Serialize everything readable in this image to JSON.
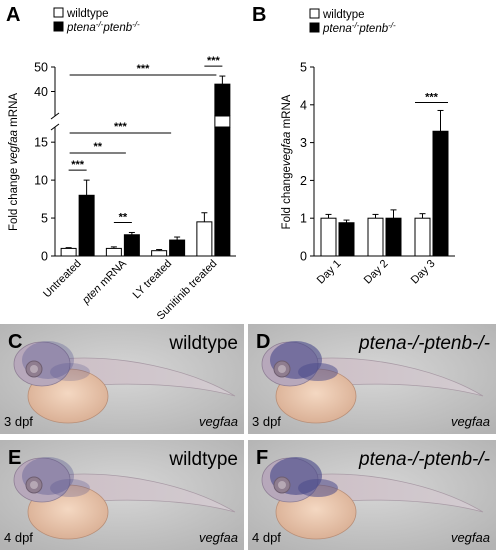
{
  "panels": {
    "A": "A",
    "B": "B",
    "C": "C",
    "D": "D",
    "E": "E",
    "F": "F"
  },
  "legend": {
    "wildtype": "wildtype",
    "mutant_base": "ptena",
    "mutant_sup1": "-/-",
    "mutant_mid": "ptenb",
    "mutant_sup2": "-/-"
  },
  "colors": {
    "wildtype": "#ffffff",
    "mutant": "#000000",
    "photo_bg": "#c9c9c9",
    "stain": "#4a4a8a"
  },
  "chart_data": [
    {
      "type": "bar",
      "panel": "A",
      "ylabel_prefix": "Fold change ",
      "ylabel_italic": "vegfaa",
      "ylabel_suffix": " mRNA",
      "broken_axis": true,
      "ylim_lower": [
        0,
        17
      ],
      "ylim_upper": [
        30,
        50
      ],
      "yticks_lower": [
        "0",
        "5",
        "10",
        "15"
      ],
      "yticks_upper": [
        "40",
        "50"
      ],
      "categories": [
        "Untreated",
        "pten mRNA",
        "LY treated",
        "Sunitinib treated"
      ],
      "category_italic": [
        false,
        true,
        false,
        false
      ],
      "category_italic_part": [
        "",
        "pten",
        "",
        ""
      ],
      "category_rest": [
        "Untreated",
        " mRNA",
        "LY treated",
        "Sunitinib treated"
      ],
      "series": [
        {
          "name": "wildtype",
          "values": [
            1.0,
            1.0,
            0.7,
            4.5
          ],
          "errors": [
            0.1,
            0.2,
            0.15,
            1.2
          ]
        },
        {
          "name": "ptena-/-ptenb-/-",
          "values": [
            8.0,
            2.8,
            2.1,
            43.0
          ],
          "errors": [
            2.0,
            0.3,
            0.4,
            3.3
          ]
        }
      ],
      "significance": [
        {
          "label": "***",
          "type": "pair",
          "category": 0
        },
        {
          "label": "**",
          "type": "pair",
          "category": 1
        },
        {
          "label": "***",
          "type": "pair",
          "category": 3
        },
        {
          "label": "**",
          "type": "span",
          "from": 0,
          "to": 1
        },
        {
          "label": "***",
          "type": "span",
          "from": 0,
          "to": 2
        },
        {
          "label": "***",
          "type": "span",
          "from": 0,
          "to": 3
        }
      ]
    },
    {
      "type": "bar",
      "panel": "B",
      "ylabel_prefix": "Fold change",
      "ylabel_italic": "vegfaa",
      "ylabel_suffix": " mRNA",
      "ylim": [
        0,
        5
      ],
      "yticks": [
        "0",
        "1",
        "2",
        "3",
        "4",
        "5"
      ],
      "categories": [
        "Day 1",
        "Day 2",
        "Day 3"
      ],
      "series": [
        {
          "name": "wildtype",
          "values": [
            1.0,
            1.0,
            1.0
          ],
          "errors": [
            0.1,
            0.1,
            0.12
          ]
        },
        {
          "name": "ptena-/-ptenb-/-",
          "values": [
            0.88,
            1.0,
            3.3
          ],
          "errors": [
            0.07,
            0.22,
            0.55
          ]
        }
      ],
      "significance": [
        {
          "label": "***",
          "type": "pair",
          "category": 2
        }
      ]
    }
  ],
  "photos": [
    {
      "panel": "C",
      "genotype": "wildtype",
      "genotype_is_mutant": false,
      "stage": "3 dpf",
      "probe": "vegfaa",
      "stain_level": 0.25
    },
    {
      "panel": "D",
      "genotype": "ptena-/-ptenb-/-",
      "genotype_is_mutant": true,
      "stage": "3 dpf",
      "probe": "vegfaa",
      "stain_level": 0.75
    },
    {
      "panel": "E",
      "genotype": "wildtype",
      "genotype_is_mutant": false,
      "stage": "4 dpf",
      "probe": "vegfaa",
      "stain_level": 0.3
    },
    {
      "panel": "F",
      "genotype": "ptena-/-ptenb-/-",
      "genotype_is_mutant": true,
      "stage": "4 dpf",
      "probe": "vegfaa",
      "stain_level": 0.8
    }
  ],
  "photo_text": {
    "wildtype": "wildtype",
    "mut_a": "ptena",
    "mut_sup": "-/-",
    "mut_b": "ptenb"
  }
}
